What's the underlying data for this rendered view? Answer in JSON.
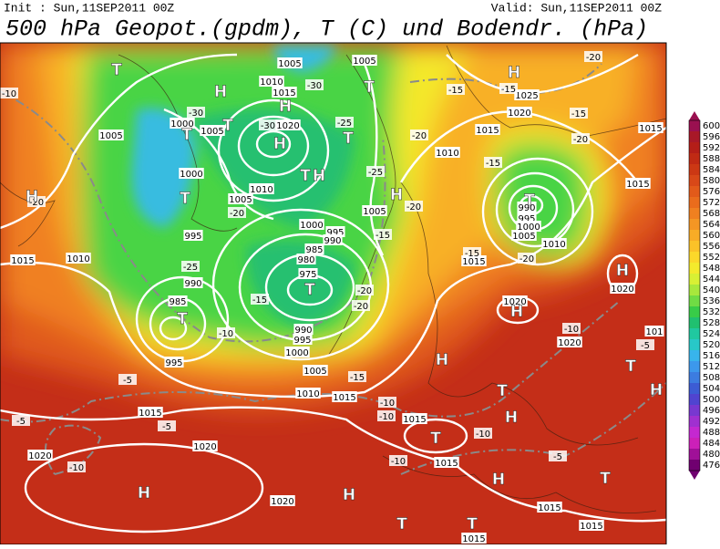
{
  "header": {
    "init": "Init : Sun,11SEP2011 00Z",
    "valid": "Valid: Sun,11SEP2011 00Z",
    "title": "500 hPa Geopot.(gpdm), T (C) und Bodendr. (hPa)"
  },
  "colorbar": {
    "labels": [
      600,
      596,
      592,
      588,
      584,
      580,
      576,
      572,
      568,
      564,
      560,
      556,
      552,
      548,
      544,
      540,
      536,
      532,
      528,
      524,
      520,
      516,
      512,
      508,
      504,
      500,
      496,
      492,
      488,
      484,
      480,
      476
    ],
    "colors": [
      "#9a1050",
      "#a81828",
      "#b41e18",
      "#c02a14",
      "#cc3814",
      "#d84818",
      "#e25a1a",
      "#ea6c1c",
      "#f08020",
      "#f49624",
      "#f8ac26",
      "#fbc228",
      "#fcd82a",
      "#f4ea2c",
      "#d8f034",
      "#a8e83c",
      "#70dc44",
      "#38cc48",
      "#20c070",
      "#20c8a0",
      "#28c8c8",
      "#38b4ec",
      "#3c98ec",
      "#3c7ce0",
      "#3c5cd4",
      "#5044d0",
      "#7838d0",
      "#a030d0",
      "#c428d0",
      "#cc20b8",
      "#a01098",
      "#700070"
    ]
  },
  "map": {
    "isobar_labels": [
      "1005",
      "1005",
      "1010",
      "1015",
      "1020",
      "1000",
      "1005",
      "1005",
      "1000",
      "1010",
      "1005",
      "995",
      "1000",
      "995",
      "990",
      "985",
      "980",
      "975",
      "1005",
      "1010",
      "1015",
      "990",
      "985",
      "990",
      "995",
      "1000",
      "995",
      "1005",
      "1010",
      "1015",
      "1015",
      "1020",
      "1020",
      "1020",
      "1015",
      "1015",
      "1015",
      "1015",
      "1015",
      "1025",
      "1020",
      "1015",
      "1010",
      "1015",
      "1015",
      "990",
      "995",
      "1000",
      "1005",
      "1010",
      "1015",
      "1020",
      "1020",
      "1020",
      "101"
    ],
    "temperature_labels": [
      "-10",
      "-30",
      "-30",
      "-30",
      "-25",
      "-25",
      "-20",
      "-25",
      "-20",
      "-15",
      "-15",
      "-20",
      "-15",
      "-20",
      "-15",
      "-20",
      "-15",
      "-20",
      "-20",
      "-15",
      "-10",
      "-15",
      "-5",
      "-5",
      "-5",
      "-10",
      "-10",
      "-10",
      "-10",
      "-10",
      "-5",
      "-15",
      "-20",
      "-10",
      "-5",
      "-20"
    ],
    "pressure_centers": [
      "T",
      "H",
      "T",
      "H",
      "T",
      "H",
      "T",
      "T",
      "H",
      "H",
      "T",
      "T",
      "H",
      "T",
      "H",
      "T",
      "H",
      "H",
      "T",
      "H",
      "T",
      "H",
      "T",
      "H",
      "T",
      "H",
      "H",
      "T",
      "H",
      "T",
      "T"
    ]
  }
}
